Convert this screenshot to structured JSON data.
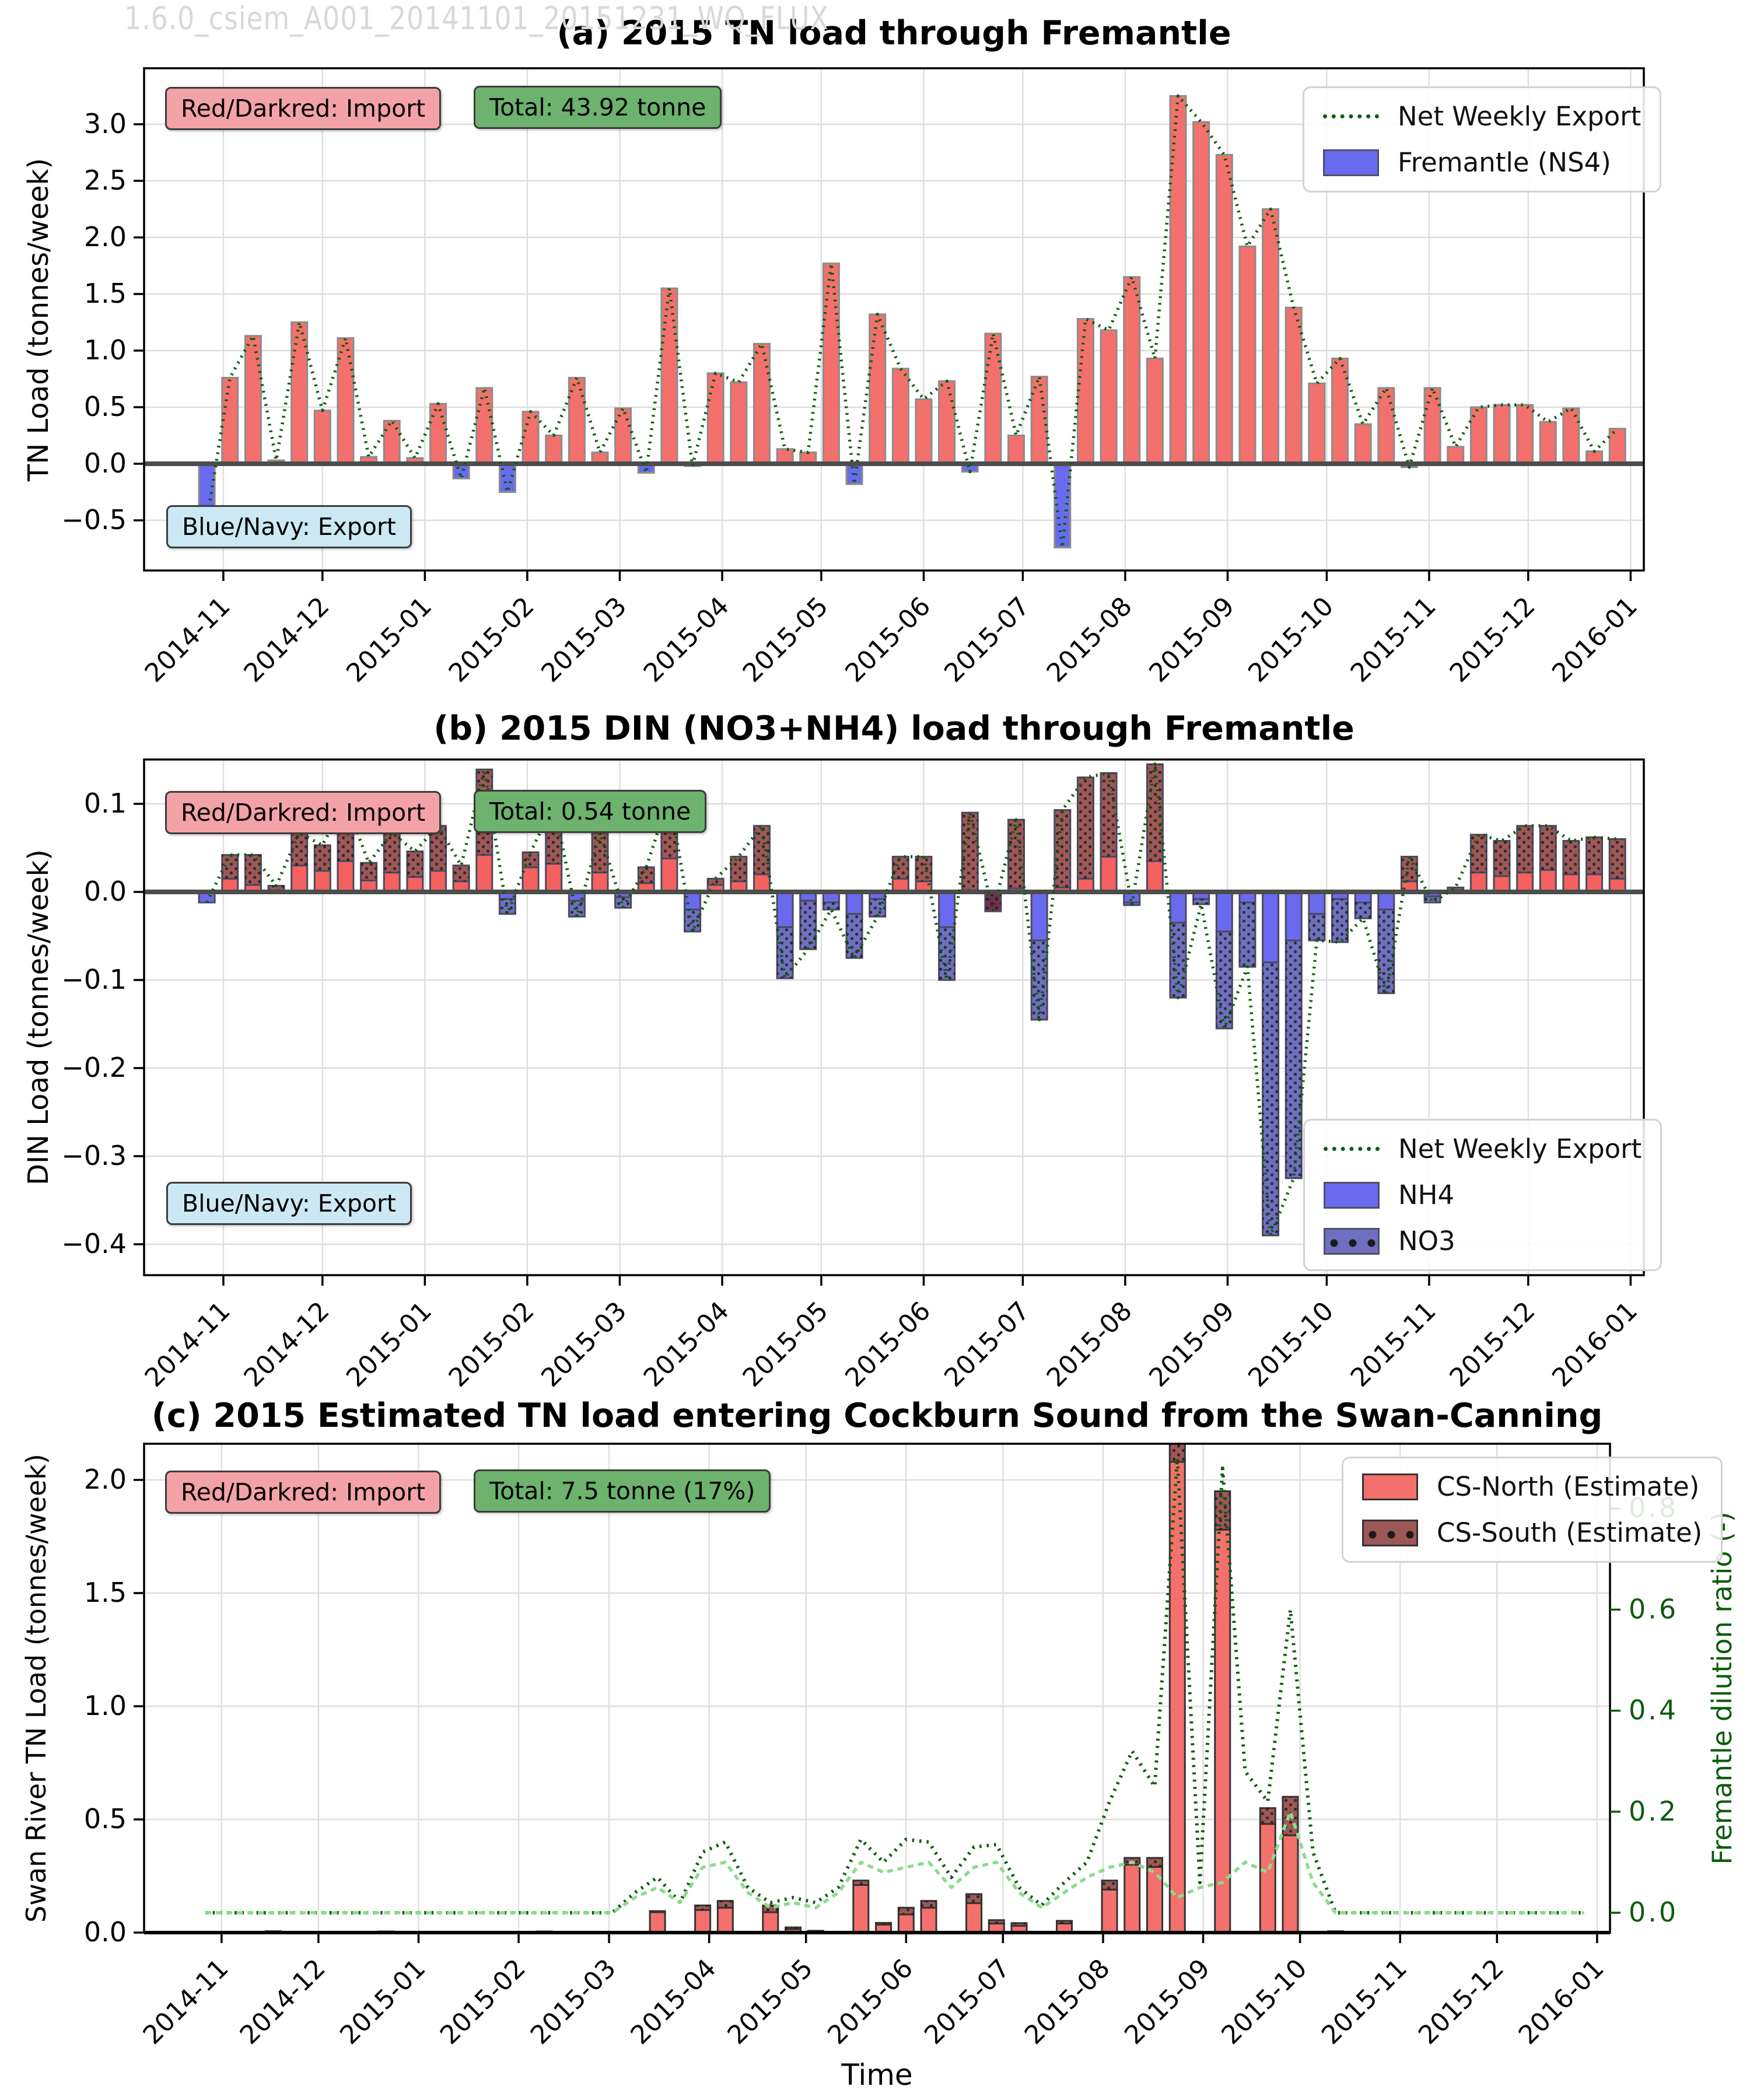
{
  "figure": {
    "watermark": "1.6.0_csiem_A001_20141101_20151231_WQ_FLUX",
    "xlabel": "Time"
  },
  "panels": {
    "a": {
      "title": "(a) 2015 TN load through Fremantle",
      "ylabel": "TN Load (tonnes/week)",
      "import_note": "Red/Darkred: Import",
      "total_note": "Total: 43.92 tonne",
      "export_note": "Blue/Navy: Export",
      "legend": {
        "line": "Net Weekly Export",
        "bar": "Fremantle (NS4)"
      }
    },
    "b": {
      "title": "(b) 2015 DIN (NO3+NH4) load through Fremantle",
      "ylabel": "DIN Load (tonnes/week)",
      "import_note": "Red/Darkred: Import",
      "total_note": "Total: 0.54 tonne",
      "export_note": "Blue/Navy: Export",
      "legend": {
        "line": "Net Weekly Export",
        "nh4": "NH4",
        "no3": "NO3"
      }
    },
    "c": {
      "title": "(c) 2015 Estimated TN load entering Cockburn Sound from the Swan-Canning",
      "ylabel": "Swan River TN Load (tonnes/week)",
      "ylabel_right": "Fremantle dilution ratio (-)",
      "import_note": "Red/Darkred: Import",
      "total_note": "Total: 7.5 tonne (17%)",
      "legend": {
        "north": "CS-North (Estimate)",
        "south": "CS-South (Estimate)"
      }
    }
  },
  "time_axis": {
    "tick_labels": [
      "2014-11",
      "2014-12",
      "2015-01",
      "2015-02",
      "2015-03",
      "2015-04",
      "2015-05",
      "2015-06",
      "2015-07",
      "2015-08",
      "2015-09",
      "2015-10",
      "2015-11",
      "2015-12",
      "2016-01"
    ],
    "tick_days": [
      24,
      54,
      85,
      116,
      144,
      175,
      205,
      236,
      266,
      297,
      328,
      358,
      389,
      419,
      450
    ],
    "axis_total_days": 454,
    "week_start_day": 19,
    "week_step_days": 7
  },
  "chart_data": [
    {
      "type": "bar",
      "panel": "a",
      "title": "(a) 2015 TN load through Fremantle",
      "ylabel": "TN Load (tonnes/week)",
      "units": "tonnes/week",
      "ylim": [
        -0.94,
        3.49
      ],
      "yticks": [
        -0.5,
        0.0,
        0.5,
        1.0,
        1.5,
        2.0,
        2.5,
        3.0
      ],
      "grid": true,
      "legend_position": "upper right",
      "weeks": [
        "2014-10-27",
        "2014-11-03",
        "2014-11-10",
        "2014-11-17",
        "2014-11-24",
        "2014-12-01",
        "2014-12-08",
        "2014-12-15",
        "2014-12-22",
        "2014-12-29",
        "2015-01-05",
        "2015-01-12",
        "2015-01-19",
        "2015-01-26",
        "2015-02-02",
        "2015-02-09",
        "2015-02-16",
        "2015-02-23",
        "2015-03-02",
        "2015-03-09",
        "2015-03-16",
        "2015-03-23",
        "2015-03-30",
        "2015-04-06",
        "2015-04-13",
        "2015-04-20",
        "2015-04-27",
        "2015-05-04",
        "2015-05-11",
        "2015-05-18",
        "2015-05-25",
        "2015-06-01",
        "2015-06-08",
        "2015-06-15",
        "2015-06-22",
        "2015-06-29",
        "2015-07-06",
        "2015-07-13",
        "2015-07-20",
        "2015-07-27",
        "2015-08-03",
        "2015-08-10",
        "2015-08-17",
        "2015-08-24",
        "2015-08-31",
        "2015-09-07",
        "2015-09-14",
        "2015-09-21",
        "2015-09-28",
        "2015-10-05",
        "2015-10-12",
        "2015-10-19",
        "2015-10-26",
        "2015-11-02",
        "2015-11-09",
        "2015-11-16",
        "2015-11-23",
        "2015-11-30",
        "2015-12-07",
        "2015-12-14",
        "2015-12-21",
        "2015-12-28"
      ],
      "values": [
        -0.5,
        0.76,
        1.13,
        0.03,
        1.25,
        0.47,
        1.11,
        0.06,
        0.38,
        0.05,
        0.53,
        -0.13,
        0.67,
        -0.25,
        0.46,
        0.25,
        0.76,
        0.1,
        0.49,
        -0.08,
        1.55,
        -0.02,
        0.8,
        0.72,
        1.06,
        0.13,
        0.1,
        1.77,
        -0.18,
        1.32,
        0.84,
        0.57,
        0.73,
        -0.07,
        1.15,
        0.25,
        0.77,
        -0.74,
        1.28,
        1.18,
        1.65,
        0.93,
        3.25,
        3.02,
        2.73,
        1.92,
        2.25,
        1.38,
        0.71,
        0.93,
        0.35,
        0.67,
        -0.03,
        0.67,
        0.15,
        0.5,
        0.52,
        0.52,
        0.37,
        0.49,
        0.11,
        0.31
      ],
      "net_weekly_export_line": "same-as-values"
    },
    {
      "type": "bar",
      "panel": "b",
      "title": "(b) 2015 DIN (NO3+NH4) load through Fremantle",
      "ylabel": "DIN Load (tonnes/week)",
      "units": "tonnes/week",
      "ylim": [
        -0.435,
        0.15
      ],
      "yticks": [
        0.1,
        0.0,
        -0.1,
        -0.2,
        -0.3,
        -0.4
      ],
      "grid": true,
      "legend_position": "lower right",
      "stacked": true,
      "series": [
        {
          "name": "NH4",
          "values": [
            -0.012,
            0.015,
            0.008,
            0.002,
            0.03,
            0.024,
            0.035,
            0.013,
            0.022,
            0.017,
            0.024,
            0.012,
            0.042,
            -0.008,
            0.028,
            0.032,
            -0.01,
            0.022,
            -0.006,
            0.01,
            0.038,
            -0.02,
            0.008,
            0.012,
            0.02,
            -0.04,
            -0.01,
            -0.012,
            -0.025,
            -0.008,
            0.015,
            0.012,
            -0.04,
            0.002,
            0.0,
            0.004,
            -0.055,
            0.005,
            0.015,
            0.04,
            -0.012,
            0.035,
            -0.035,
            -0.008,
            -0.045,
            -0.012,
            -0.08,
            -0.055,
            -0.025,
            -0.008,
            -0.012,
            -0.02,
            0.012,
            -0.005,
            0.002,
            0.022,
            0.018,
            0.022,
            0.025,
            0.02,
            0.02,
            0.015
          ]
        },
        {
          "name": "NO3",
          "values": [
            0.0,
            0.027,
            0.034,
            0.005,
            0.037,
            0.029,
            0.068,
            0.02,
            0.045,
            0.029,
            0.051,
            0.018,
            0.097,
            -0.017,
            0.017,
            0.068,
            -0.018,
            0.045,
            -0.012,
            0.018,
            0.07,
            -0.025,
            0.007,
            0.028,
            0.055,
            -0.058,
            -0.055,
            -0.008,
            -0.05,
            -0.02,
            0.025,
            0.028,
            -0.06,
            0.088,
            -0.022,
            0.078,
            -0.09,
            0.088,
            0.115,
            0.095,
            -0.003,
            0.11,
            -0.085,
            -0.006,
            -0.11,
            -0.073,
            -0.31,
            -0.27,
            -0.03,
            -0.049,
            -0.018,
            -0.095,
            0.028,
            -0.007,
            0.003,
            0.043,
            0.04,
            0.053,
            0.05,
            0.038,
            0.042,
            0.045
          ]
        }
      ],
      "net_weekly_export_line": "sum-of-series"
    },
    {
      "type": "bar",
      "panel": "c",
      "title": "(c) 2015 Estimated TN load entering Cockburn Sound from the Swan-Canning",
      "ylabel": "Swan River TN Load (tonnes/week)",
      "ylabel_right": "Fremantle dilution ratio (-)",
      "units": "tonnes/week",
      "ylim": [
        0,
        2.16
      ],
      "yticks": [
        0.0,
        0.5,
        1.0,
        1.5,
        2.0
      ],
      "ylim_right": [
        -0.04,
        0.93
      ],
      "yticks_right": [
        0.0,
        0.2,
        0.4,
        0.6,
        0.8
      ],
      "grid": true,
      "legend_position": "upper right",
      "stacked": true,
      "series": [
        {
          "name": "CS-North (Estimate)",
          "values": [
            0,
            0,
            0,
            0,
            0,
            0,
            0,
            0,
            0,
            0,
            0,
            0,
            0,
            0,
            0,
            0,
            0,
            0,
            0,
            0,
            0.09,
            0,
            0.1,
            0.11,
            0,
            0.09,
            0.015,
            0.005,
            0,
            0.21,
            0.035,
            0.08,
            0.11,
            0,
            0.13,
            0.04,
            0.03,
            0,
            0.04,
            0,
            0.19,
            0.3,
            0.29,
            2.08,
            0,
            1.78,
            0,
            0.48,
            0.43,
            0,
            0,
            0,
            0,
            0,
            0,
            0,
            0,
            0,
            0,
            0,
            0,
            0
          ]
        },
        {
          "name": "CS-South (Estimate)",
          "values": [
            0,
            0,
            0,
            0.006,
            0,
            0,
            0,
            0,
            0.005,
            0,
            0,
            0,
            0,
            0,
            0,
            0.005,
            0,
            0,
            0,
            0,
            0.005,
            0,
            0.02,
            0.03,
            0,
            0.03,
            0.008,
            0.003,
            0,
            0.02,
            0.008,
            0.03,
            0.03,
            0,
            0.04,
            0.015,
            0.012,
            0,
            0.012,
            0,
            0.04,
            0.03,
            0.04,
            0.08,
            0,
            0.17,
            0,
            0.07,
            0.17,
            0,
            0.006,
            0,
            0,
            0,
            0,
            0.004,
            0,
            0,
            0,
            0,
            0,
            0
          ]
        }
      ],
      "dilution_ratio_dark": [
        0,
        0,
        0,
        0,
        0,
        0,
        0,
        0,
        0,
        0,
        0,
        0,
        0,
        0,
        0,
        0,
        0,
        0,
        0,
        0.04,
        0.07,
        0.02,
        0.12,
        0.14,
        0.05,
        0.02,
        0.03,
        0.02,
        0.05,
        0.145,
        0.1,
        0.145,
        0.14,
        0.07,
        0.13,
        0.135,
        0.05,
        0.015,
        0.06,
        0.1,
        0.22,
        0.32,
        0.25,
        0.9,
        0.06,
        0.88,
        0.28,
        0.22,
        0.6,
        0.12,
        0,
        0,
        0,
        0,
        0,
        0,
        0,
        0,
        0,
        0,
        0,
        0
      ],
      "dilution_ratio_light": [
        0,
        0,
        0,
        0,
        0,
        0,
        0,
        0,
        0,
        0,
        0,
        0,
        0,
        0,
        0,
        0,
        0,
        0,
        0,
        0.03,
        0.05,
        0.02,
        0.09,
        0.1,
        0.04,
        0.01,
        0.02,
        0.01,
        0.04,
        0.1,
        0.08,
        0.09,
        0.1,
        0.05,
        0.09,
        0.1,
        0.04,
        0.01,
        0.04,
        0.07,
        0.09,
        0.1,
        0.08,
        0.03,
        0.05,
        0.06,
        0.1,
        0.08,
        0.2,
        0.06,
        0,
        0,
        0,
        0,
        0,
        0,
        0,
        0,
        0,
        0,
        0,
        0
      ]
    }
  ],
  "colors": {
    "import_red": "#f4706c",
    "import_darkred": "#9d5757",
    "export_blue": "#6a6aef",
    "export_navy": "#6f6fc0",
    "maroon_special": "#7d2b52",
    "net_line_green": "#0e5c0e",
    "dilution_light_green": "#8ddb8d",
    "bar_edge_light": "#8c8c8c",
    "bar_edge_dark": "#4a4a5e",
    "zero_line": "#4d4d4d",
    "grid": "#dedede",
    "right_axis_green": "#0d5c0d",
    "watermark_gray": "#d8d8d8",
    "note_pink": "#f3a2a7",
    "note_green": "#6db26d",
    "note_blue": "#cde8f5"
  }
}
